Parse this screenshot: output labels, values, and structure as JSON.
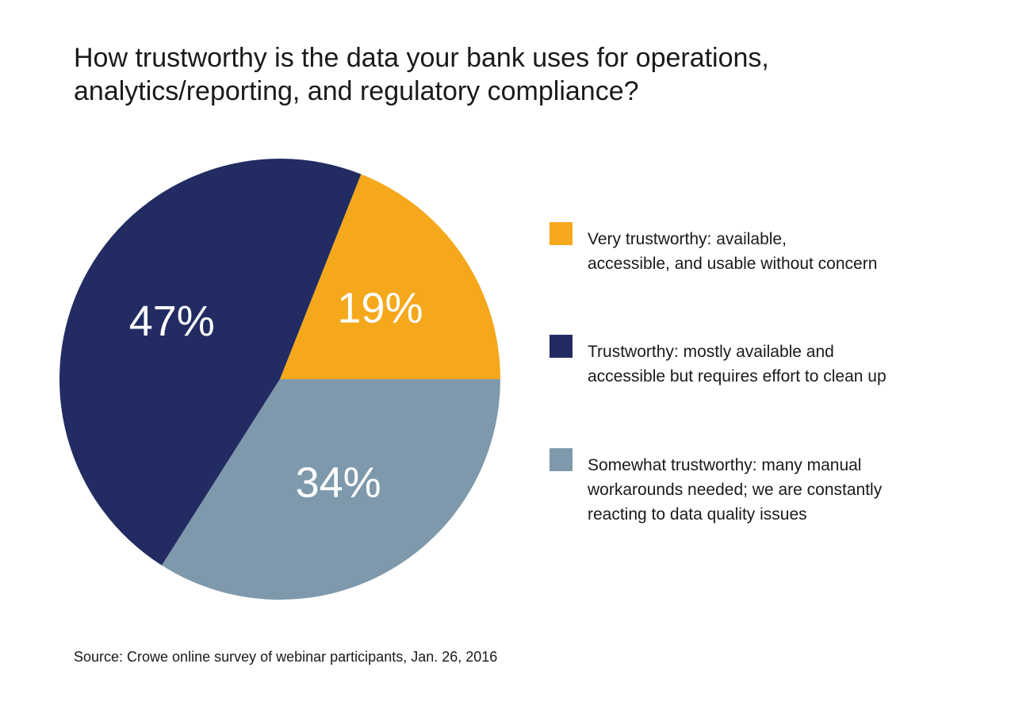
{
  "chart_data": {
    "type": "pie",
    "title": "How trustworthy is the data your bank uses for operations,\nanalytics/reporting, and regulatory compliance?",
    "slices": [
      {
        "label": "Very trustworthy: available,\naccessible, and usable without concern",
        "value": 19,
        "display": "19%",
        "color": "#F5A81C"
      },
      {
        "label": "Trustworthy: mostly available and\naccessible but requires effort to clean up",
        "value": 47,
        "display": "47%",
        "color": "#222C62"
      },
      {
        "label": "Somewhat trustworthy: many manual\nworkarounds needed; we are constantly\nreacting to data quality issues",
        "value": 34,
        "display": "34%",
        "color": "#7F99AC"
      }
    ],
    "legend_position": "right",
    "source": "Source: Crowe online survey of webinar participants, Jan. 26, 2016"
  }
}
